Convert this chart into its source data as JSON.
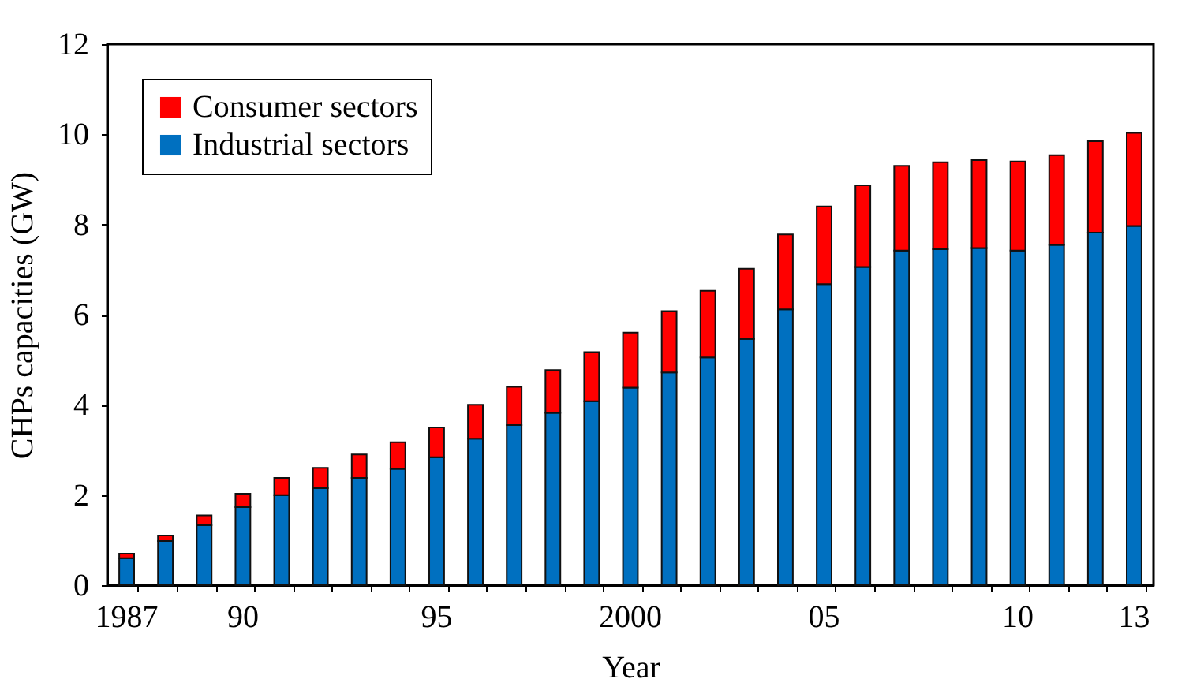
{
  "chart_data": {
    "type": "bar",
    "stacked": true,
    "xlabel": "Year",
    "ylabel": "CHPs capacities (GW)",
    "categories": [
      "1987",
      null,
      null,
      "90",
      null,
      null,
      null,
      null,
      "95",
      null,
      null,
      null,
      null,
      "2000",
      null,
      null,
      null,
      null,
      "05",
      null,
      null,
      null,
      null,
      "10",
      null,
      null,
      "13"
    ],
    "series": [
      {
        "name": "Industrial sectors",
        "color": "#0070c0",
        "values": [
          0.6,
          0.98,
          1.33,
          1.73,
          2.0,
          2.15,
          2.38,
          2.58,
          2.84,
          3.25,
          3.55,
          3.82,
          4.08,
          4.38,
          4.72,
          5.05,
          5.46,
          6.12,
          6.68,
          7.06,
          7.42,
          7.45,
          7.48,
          7.42,
          7.55,
          7.82,
          7.97
        ]
      },
      {
        "name": "Consumer sectors",
        "color": "#ff0000",
        "values": [
          0.1,
          0.12,
          0.22,
          0.3,
          0.38,
          0.45,
          0.52,
          0.59,
          0.66,
          0.75,
          0.85,
          0.95,
          1.09,
          1.22,
          1.36,
          1.48,
          1.56,
          1.66,
          1.72,
          1.81,
          1.88,
          1.93,
          1.95,
          1.98,
          1.99,
          2.03,
          2.06
        ]
      }
    ],
    "ylim": [
      0,
      12
    ],
    "yticks": [
      0,
      2,
      4,
      6,
      8,
      10,
      12
    ],
    "grid": false,
    "legend": "top left"
  }
}
